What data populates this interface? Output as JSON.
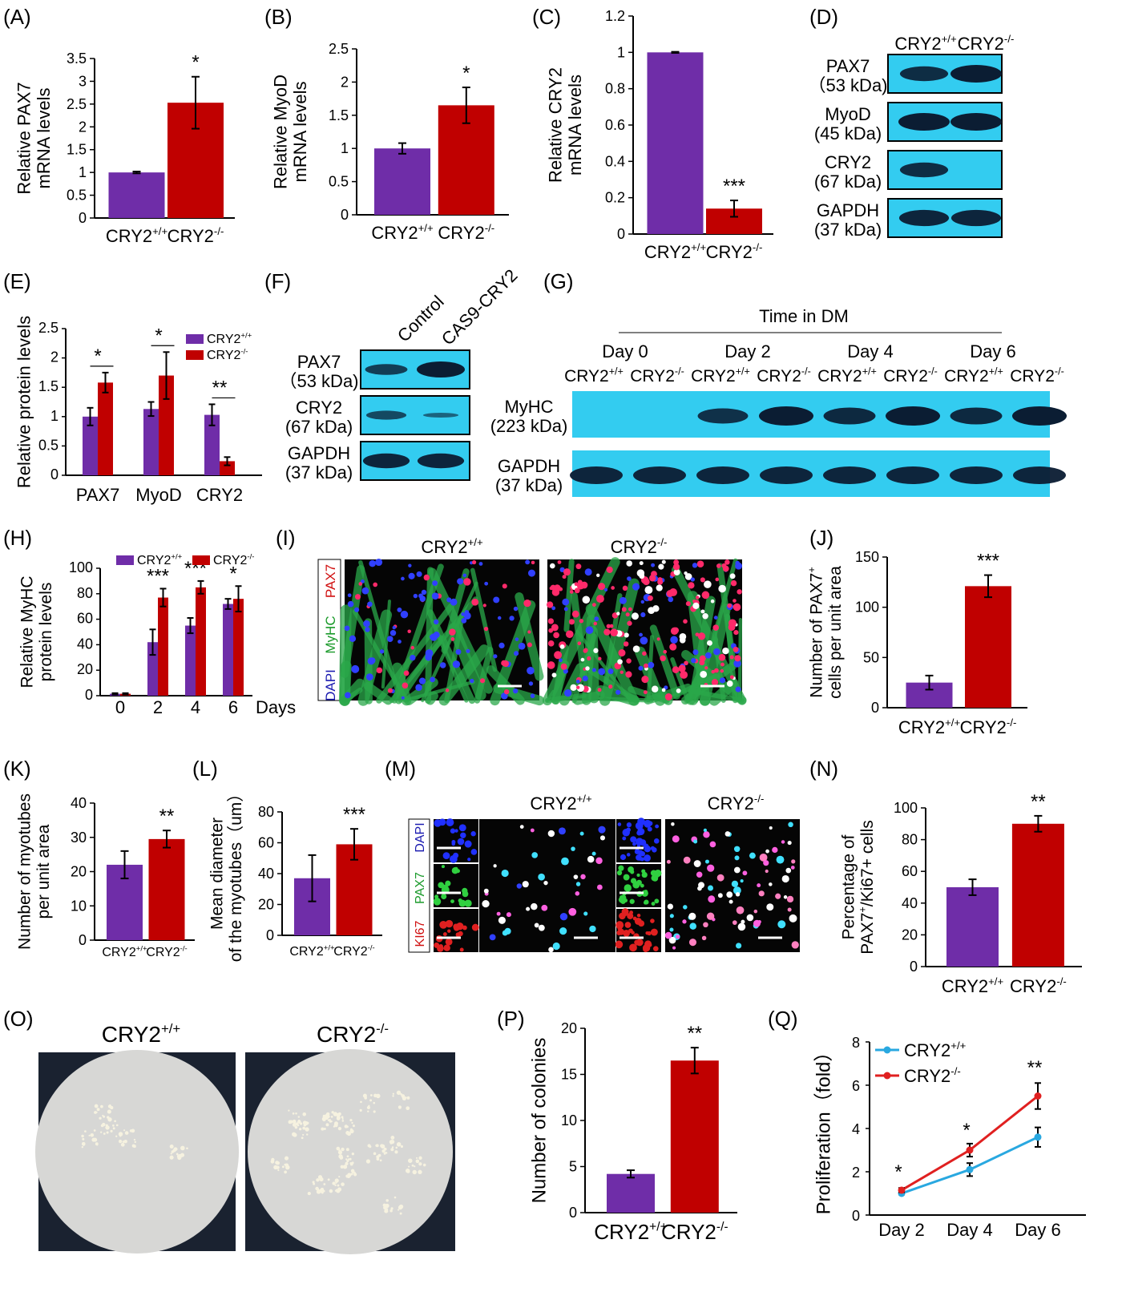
{
  "colors": {
    "wt": "#6f2da8",
    "ko": "#c00000",
    "blot": "#33ccf0",
    "band": "#0b1d33",
    "wt_line": "#29a8e0",
    "ko_line": "#e02020"
  },
  "A": {
    "label": "(A)",
    "ylabel": "Relative PAX7|mRNA levels",
    "categories": [
      "CRY2+/+",
      "CRY2-/-"
    ],
    "values": [
      1.0,
      2.53
    ],
    "errors": [
      0.02,
      0.57
    ],
    "ylim": [
      0,
      3.5
    ],
    "ticks": [
      "0",
      "0.5",
      "1",
      "1.5",
      "2",
      "2.5",
      "3",
      "3.5"
    ],
    "sig": [
      "",
      "*"
    ]
  },
  "B": {
    "label": "(B)",
    "ylabel": "Relative MyoD|mRNA levels",
    "categories": [
      "CRY2+/+",
      "CRY2-/-"
    ],
    "values": [
      1.0,
      1.65
    ],
    "errors": [
      0.08,
      0.27
    ],
    "ylim": [
      0,
      2.5
    ],
    "ticks": [
      "0",
      "0.5",
      "1",
      "1.5",
      "2",
      "2.5"
    ],
    "sig": [
      "",
      "*"
    ]
  },
  "C": {
    "label": "(C)",
    "ylabel": "Relative CRY2|mRNA levels",
    "categories": [
      "CRY2+/+",
      "CRY2-/-"
    ],
    "values": [
      1.0,
      0.14
    ],
    "errors": [
      0.003,
      0.045
    ],
    "ylim": [
      0,
      1.2
    ],
    "ticks": [
      "0",
      "0.2",
      "0.4",
      "0.6",
      "0.8",
      "1",
      "1.2"
    ],
    "sig": [
      "",
      "***"
    ]
  },
  "D": {
    "label": "(D)",
    "lanes": [
      "CRY2+/+",
      "CRY2-/-"
    ],
    "rows": [
      {
        "name": "PAX7",
        "kda": "（53 kDa)",
        "bands": [
          0.8,
          1.0
        ]
      },
      {
        "name": "MyoD",
        "kda": "(45 kDa)",
        "bands": [
          1.0,
          1.0
        ]
      },
      {
        "name": "CRY2",
        "kda": "(67 kDa)",
        "bands": [
          0.8,
          0.0
        ]
      },
      {
        "name": "GAPDH",
        "kda": "(37 kDa)",
        "bands": [
          0.9,
          0.9
        ]
      }
    ]
  },
  "E": {
    "label": "(E)",
    "ylabel": "Relative protein levels",
    "categories": [
      "PAX7",
      "MyoD",
      "CRY2"
    ],
    "legend": [
      "CRY2+/+",
      "CRY2-/-"
    ],
    "series": [
      {
        "values": [
          1.0,
          1.13,
          1.03
        ],
        "errors": [
          0.15,
          0.12,
          0.18
        ]
      },
      {
        "values": [
          1.58,
          1.7,
          0.24
        ],
        "errors": [
          0.17,
          0.4,
          0.07
        ]
      }
    ],
    "ylim": [
      0,
      2.5
    ],
    "ticks": [
      "0",
      "0.5",
      "1",
      "1.5",
      "2",
      "2.5"
    ],
    "sig": [
      "*",
      "*",
      "**"
    ]
  },
  "F": {
    "label": "(F)",
    "lanes": [
      "Control",
      "CAS9-CRY2"
    ],
    "rows": [
      {
        "name": "PAX7",
        "kda": "（53 kDa)",
        "bands": [
          0.6,
          1.0
        ]
      },
      {
        "name": "CRY2",
        "kda": "(67 kDa)",
        "bands": [
          0.45,
          0.12
        ]
      },
      {
        "name": "GAPDH",
        "kda": "(37 kDa)",
        "bands": [
          0.9,
          0.9
        ]
      }
    ]
  },
  "G": {
    "label": "(G)",
    "title": "Time in DM",
    "days": [
      "Day 0",
      "Day 2",
      "Day 4",
      "Day 6"
    ],
    "lanes": [
      "CRY2+/+",
      "CRY2-/-",
      "CRY2+/+",
      "CRY2-/-",
      "CRY2+/+",
      "CRY2-/-",
      "CRY2+/+",
      "CRY2-/-"
    ],
    "rows": [
      {
        "name": "MyHC",
        "kda": "(223 kDa)",
        "bands": [
          0,
          0,
          0.75,
          1.0,
          0.85,
          1.0,
          0.85,
          1.0
        ]
      },
      {
        "name": "GAPDH",
        "kda": "(37 kDa)",
        "bands": [
          0.9,
          0.9,
          0.9,
          0.9,
          0.9,
          0.9,
          0.9,
          0.9
        ]
      }
    ]
  },
  "H": {
    "label": "(H)",
    "ylabel": "Relative MyHC|protein levels",
    "categories": [
      "0",
      "2",
      "4",
      "6"
    ],
    "xunit": "Days",
    "legend": [
      "CRY2+/+",
      "CRY2-/-"
    ],
    "series": [
      {
        "values": [
          1.5,
          42,
          55,
          72
        ],
        "errors": [
          0.5,
          10,
          6,
          4
        ]
      },
      {
        "values": [
          1.5,
          77,
          85,
          76
        ],
        "errors": [
          0.5,
          7,
          5,
          10
        ]
      }
    ],
    "ylim": [
      0,
      100
    ],
    "ticks": [
      "0",
      "20",
      "40",
      "60",
      "80",
      "100"
    ],
    "sig": [
      "",
      "***",
      "***",
      "*"
    ]
  },
  "I": {
    "label": "(I)",
    "titles": [
      "CRY2+/+",
      "CRY2-/-"
    ],
    "stain": [
      "DAPI",
      "MyHC",
      "PAX7"
    ]
  },
  "J": {
    "label": "(J)",
    "ylabel": "Number of PAX7+|cells per unit area",
    "categories": [
      "CRY2+/+",
      "CRY2-/-"
    ],
    "values": [
      25,
      121
    ],
    "errors": [
      7,
      11
    ],
    "ylim": [
      0,
      150
    ],
    "ticks": [
      "0",
      "50",
      "100",
      "150"
    ],
    "sig": [
      "",
      "***"
    ]
  },
  "K": {
    "label": "(K)",
    "ylabel": "Number of myotubes|per unit area",
    "categories": [
      "CRY2+/+",
      "CRY2-/-"
    ],
    "values": [
      22,
      29.5
    ],
    "errors": [
      4,
      2.5
    ],
    "ylim": [
      0,
      40
    ],
    "ticks": [
      "0",
      "10",
      "20",
      "30",
      "40"
    ],
    "sig": [
      "",
      "**"
    ]
  },
  "L": {
    "label": "(L)",
    "ylabel": "Mean diameter|of the myotubes（um）",
    "categories": [
      "CRY2+/+",
      "CRY2-/-"
    ],
    "values": [
      37,
      59
    ],
    "errors": [
      15,
      10
    ],
    "ylim": [
      0,
      80
    ],
    "ticks": [
      "0",
      "20",
      "40",
      "60",
      "80"
    ],
    "sig": [
      "",
      "***"
    ]
  },
  "M": {
    "label": "(M)",
    "titles": [
      "CRY2+/+",
      "CRY2-/-"
    ],
    "stain": [
      "DAPI",
      "PAX7",
      "KI67"
    ]
  },
  "N": {
    "label": "(N)",
    "ylabel": "Percentage of|PAX7+/Ki67+ cells",
    "categories": [
      "CRY2+/+",
      "CRY2-/-"
    ],
    "values": [
      50,
      90
    ],
    "errors": [
      5,
      5
    ],
    "ylim": [
      0,
      100
    ],
    "ticks": [
      "0",
      "20",
      "40",
      "60",
      "80",
      "100"
    ],
    "sig": [
      "",
      "**"
    ]
  },
  "O": {
    "label": "(O)",
    "titles": [
      "CRY2+/+",
      "CRY2-/-"
    ]
  },
  "P": {
    "label": "(P)",
    "ylabel": "Number of colonies",
    "categories": [
      "CRY2+/+",
      "CRY2-/-"
    ],
    "values": [
      4.2,
      16.5
    ],
    "errors": [
      0.4,
      1.4
    ],
    "ylim": [
      0,
      20
    ],
    "ticks": [
      "0",
      "5",
      "10",
      "15",
      "20"
    ],
    "sig": [
      "",
      "**"
    ]
  },
  "Q": {
    "label": "(Q)",
    "ylabel": "Proliferation（fold）",
    "categories": [
      "Day 2",
      "Day 4",
      "Day 6"
    ],
    "legend": [
      "CRY2+/+",
      "CRY2-/-"
    ],
    "series": [
      {
        "values": [
          1.0,
          2.1,
          3.6
        ],
        "errors": [
          0.05,
          0.3,
          0.45
        ]
      },
      {
        "values": [
          1.15,
          3.0,
          5.5
        ],
        "errors": [
          0.1,
          0.3,
          0.6
        ]
      }
    ],
    "ylim": [
      0,
      8
    ],
    "ticks": [
      "0",
      "2",
      "4",
      "6",
      "8"
    ],
    "sig": [
      "*",
      "*",
      "**"
    ]
  },
  "chart_data": [
    {
      "type": "bar",
      "panel": "A",
      "categories": [
        "CRY2+/+",
        "CRY2-/-"
      ],
      "values": [
        1.0,
        2.53
      ],
      "ylabel": "Relative PAX7 mRNA levels",
      "ylim": [
        0,
        3.5
      ]
    },
    {
      "type": "bar",
      "panel": "B",
      "categories": [
        "CRY2+/+",
        "CRY2-/-"
      ],
      "values": [
        1.0,
        1.65
      ],
      "ylabel": "Relative MyoD mRNA levels",
      "ylim": [
        0,
        2.5
      ]
    },
    {
      "type": "bar",
      "panel": "C",
      "categories": [
        "CRY2+/+",
        "CRY2-/-"
      ],
      "values": [
        1.0,
        0.14
      ],
      "ylabel": "Relative CRY2 mRNA levels",
      "ylim": [
        0,
        1.2
      ]
    },
    {
      "type": "bar",
      "panel": "E",
      "categories": [
        "PAX7",
        "MyoD",
        "CRY2"
      ],
      "series": [
        {
          "name": "CRY2+/+",
          "values": [
            1.0,
            1.13,
            1.03
          ]
        },
        {
          "name": "CRY2-/-",
          "values": [
            1.58,
            1.7,
            0.24
          ]
        }
      ],
      "ylabel": "Relative protein levels",
      "ylim": [
        0,
        2.5
      ]
    },
    {
      "type": "bar",
      "panel": "H",
      "categories": [
        "0",
        "2",
        "4",
        "6"
      ],
      "series": [
        {
          "name": "CRY2+/+",
          "values": [
            1.5,
            42,
            55,
            72
          ]
        },
        {
          "name": "CRY2-/-",
          "values": [
            1.5,
            77,
            85,
            76
          ]
        }
      ],
      "ylabel": "Relative MyHC protein levels",
      "xlabel": "Days",
      "ylim": [
        0,
        100
      ]
    },
    {
      "type": "bar",
      "panel": "J",
      "categories": [
        "CRY2+/+",
        "CRY2-/-"
      ],
      "values": [
        25,
        121
      ],
      "ylabel": "Number of PAX7+ cells per unit area",
      "ylim": [
        0,
        150
      ]
    },
    {
      "type": "bar",
      "panel": "K",
      "categories": [
        "CRY2+/+",
        "CRY2-/-"
      ],
      "values": [
        22,
        29.5
      ],
      "ylabel": "Number of myotubes per unit area",
      "ylim": [
        0,
        40
      ]
    },
    {
      "type": "bar",
      "panel": "L",
      "categories": [
        "CRY2+/+",
        "CRY2-/-"
      ],
      "values": [
        37,
        59
      ],
      "ylabel": "Mean diameter of the myotubes（um）",
      "ylim": [
        0,
        80
      ]
    },
    {
      "type": "bar",
      "panel": "N",
      "categories": [
        "CRY2+/+",
        "CRY2-/-"
      ],
      "values": [
        50,
        90
      ],
      "ylabel": "Percentage of PAX7+/Ki67+ cells",
      "ylim": [
        0,
        100
      ]
    },
    {
      "type": "bar",
      "panel": "P",
      "categories": [
        "CRY2+/+",
        "CRY2-/-"
      ],
      "values": [
        4.2,
        16.5
      ],
      "ylabel": "Number of colonies",
      "ylim": [
        0,
        20
      ]
    },
    {
      "type": "line",
      "panel": "Q",
      "x": [
        "Day 2",
        "Day 4",
        "Day 6"
      ],
      "series": [
        {
          "name": "CRY2+/+",
          "values": [
            1.0,
            2.1,
            3.6
          ]
        },
        {
          "name": "CRY2-/-",
          "values": [
            1.15,
            3.0,
            5.5
          ]
        }
      ],
      "ylabel": "Proliferation（fold）",
      "ylim": [
        0,
        8
      ]
    }
  ]
}
